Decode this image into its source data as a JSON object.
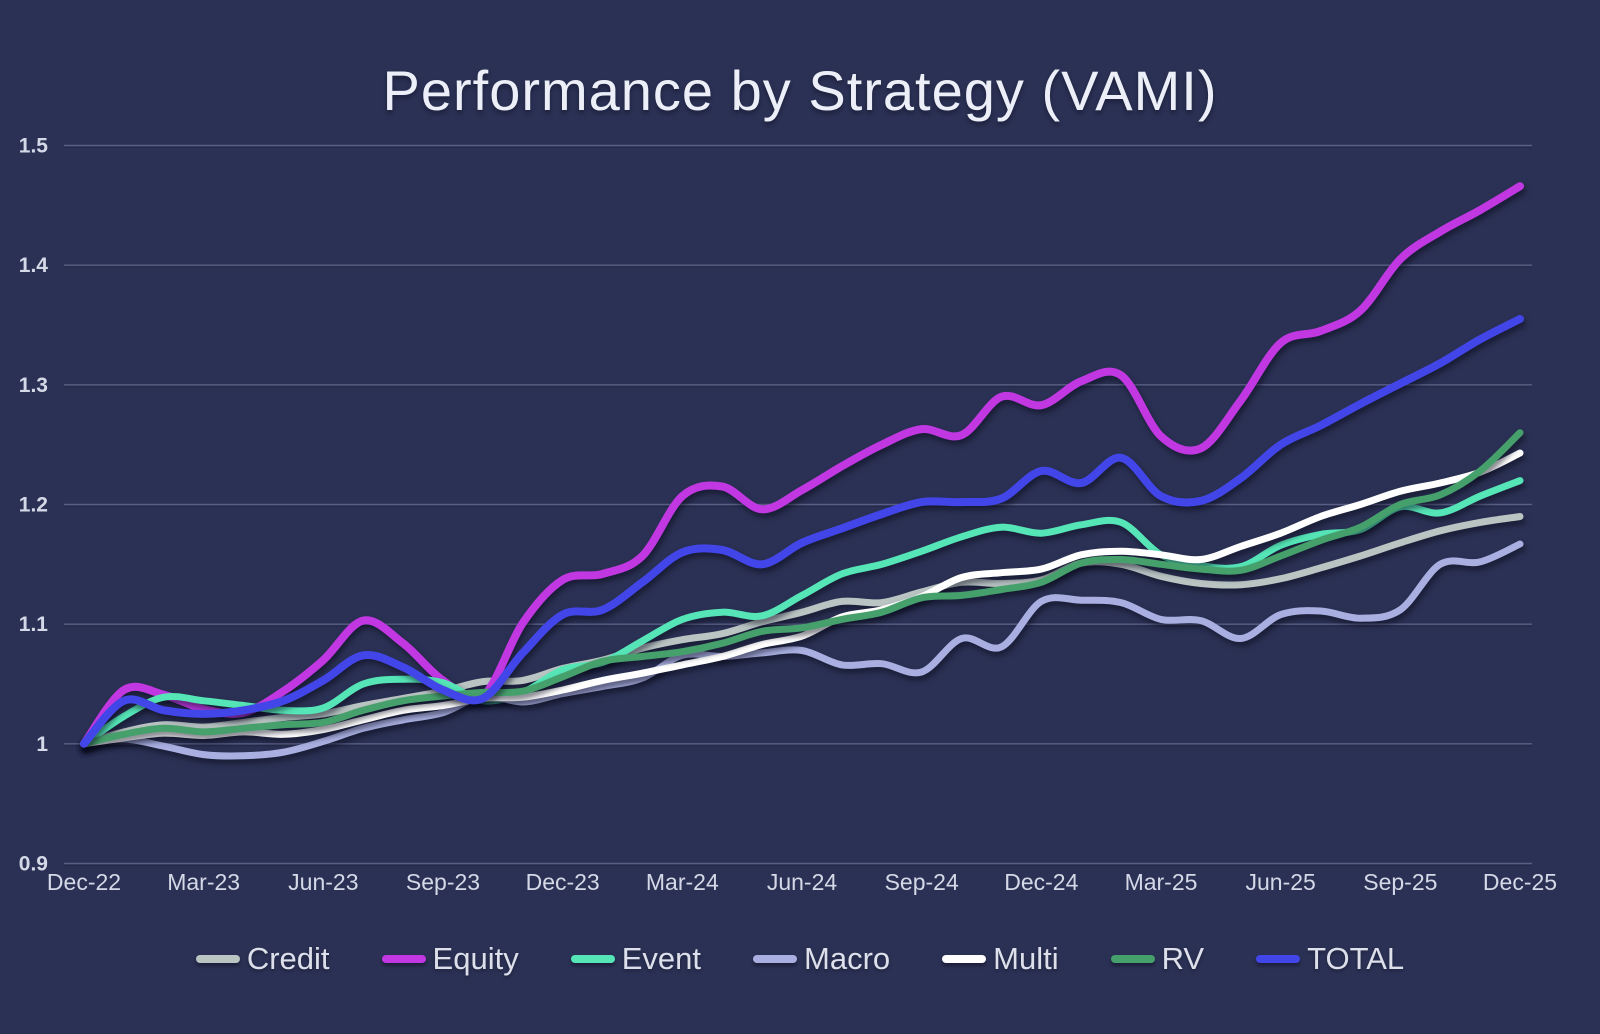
{
  "title": "Performance by Strategy (VAMI)",
  "colors": {
    "background": "#2b3154",
    "gridline": "#696e95",
    "axis_text": "#d5d9e7",
    "title_text": "#eceff7",
    "legend_text": "#dde0ea"
  },
  "chart_data": {
    "type": "line",
    "title": "Performance by Strategy (VAMI)",
    "xlabel": "",
    "ylabel": "",
    "ylim": [
      0.9,
      1.5
    ],
    "grid": "horizontal-only",
    "legend_position": "bottom-center",
    "points_per_series": 37,
    "x_unit": "months (Dec-22 to Dec-25, monthly)",
    "y_ticks": [
      {
        "value": 0.9,
        "label": "0.9"
      },
      {
        "value": 1.0,
        "label": "1"
      },
      {
        "value": 1.1,
        "label": "1.1"
      },
      {
        "value": 1.2,
        "label": "1.2"
      },
      {
        "value": 1.3,
        "label": "1.3"
      },
      {
        "value": 1.4,
        "label": "1.4"
      },
      {
        "value": 1.5,
        "label": "1.5"
      }
    ],
    "x_tick_labels": [
      "Dec-22",
      "Mar-23",
      "Jun-23",
      "Sep-23",
      "Dec-23",
      "Mar-24",
      "Jun-24",
      "Sep-24",
      "Dec-24",
      "Mar-25",
      "Jun-25",
      "Sep-25",
      "Dec-25"
    ],
    "x_tick_every_n_points": 3,
    "series": [
      {
        "name": "Credit",
        "color": "#b9c4c3",
        "stroke_width": 7,
        "values": [
          1.0,
          1.01,
          1.016,
          1.014,
          1.018,
          1.022,
          1.025,
          1.032,
          1.038,
          1.044,
          1.052,
          1.053,
          1.063,
          1.07,
          1.08,
          1.087,
          1.092,
          1.102,
          1.11,
          1.119,
          1.118,
          1.127,
          1.135,
          1.134,
          1.137,
          1.151,
          1.15,
          1.14,
          1.134,
          1.133,
          1.138,
          1.147,
          1.157,
          1.168,
          1.178,
          1.185,
          1.19
        ]
      },
      {
        "name": "Equity",
        "color": "#c138e3",
        "stroke_width": 8,
        "values": [
          1.0,
          1.045,
          1.041,
          1.029,
          1.026,
          1.044,
          1.07,
          1.103,
          1.084,
          1.053,
          1.04,
          1.101,
          1.137,
          1.142,
          1.157,
          1.207,
          1.215,
          1.196,
          1.212,
          1.232,
          1.25,
          1.263,
          1.258,
          1.29,
          1.283,
          1.303,
          1.308,
          1.257,
          1.247,
          1.287,
          1.335,
          1.345,
          1.362,
          1.405,
          1.428,
          1.446,
          1.466
        ]
      },
      {
        "name": "Event",
        "color": "#55e5b6",
        "stroke_width": 7,
        "values": [
          1.0,
          1.023,
          1.039,
          1.036,
          1.032,
          1.028,
          1.03,
          1.05,
          1.054,
          1.051,
          1.036,
          1.043,
          1.062,
          1.068,
          1.086,
          1.104,
          1.11,
          1.107,
          1.124,
          1.142,
          1.15,
          1.161,
          1.173,
          1.181,
          1.176,
          1.183,
          1.185,
          1.158,
          1.149,
          1.148,
          1.166,
          1.175,
          1.179,
          1.198,
          1.193,
          1.207,
          1.22
        ]
      },
      {
        "name": "Macro",
        "color": "#a9afe0",
        "stroke_width": 7,
        "values": [
          1.0,
          1.004,
          0.998,
          0.991,
          0.99,
          0.993,
          1.002,
          1.013,
          1.02,
          1.026,
          1.04,
          1.035,
          1.042,
          1.048,
          1.055,
          1.074,
          1.073,
          1.076,
          1.078,
          1.066,
          1.067,
          1.06,
          1.088,
          1.081,
          1.119,
          1.12,
          1.118,
          1.104,
          1.103,
          1.088,
          1.108,
          1.111,
          1.105,
          1.112,
          1.15,
          1.152,
          1.167
        ]
      },
      {
        "name": "Multi",
        "color": "#ffffff",
        "stroke_width": 7,
        "values": [
          1.0,
          1.005,
          1.009,
          1.007,
          1.01,
          1.008,
          1.012,
          1.02,
          1.028,
          1.032,
          1.038,
          1.039,
          1.045,
          1.053,
          1.059,
          1.066,
          1.073,
          1.083,
          1.09,
          1.106,
          1.112,
          1.123,
          1.139,
          1.143,
          1.146,
          1.158,
          1.161,
          1.158,
          1.154,
          1.165,
          1.176,
          1.19,
          1.2,
          1.211,
          1.218,
          1.227,
          1.243
        ]
      },
      {
        "name": "RV",
        "color": "#46a06b",
        "stroke_width": 7,
        "values": [
          1.0,
          1.008,
          1.013,
          1.01,
          1.013,
          1.016,
          1.018,
          1.028,
          1.036,
          1.04,
          1.043,
          1.044,
          1.056,
          1.069,
          1.073,
          1.077,
          1.084,
          1.094,
          1.097,
          1.104,
          1.11,
          1.122,
          1.124,
          1.129,
          1.135,
          1.151,
          1.154,
          1.15,
          1.146,
          1.145,
          1.157,
          1.17,
          1.181,
          1.2,
          1.208,
          1.228,
          1.26
        ]
      },
      {
        "name": "TOTAL",
        "color": "#4246e8",
        "stroke_width": 8,
        "values": [
          1.0,
          1.036,
          1.028,
          1.025,
          1.028,
          1.036,
          1.053,
          1.074,
          1.064,
          1.045,
          1.038,
          1.076,
          1.108,
          1.112,
          1.135,
          1.16,
          1.162,
          1.15,
          1.168,
          1.18,
          1.192,
          1.202,
          1.202,
          1.205,
          1.228,
          1.218,
          1.239,
          1.207,
          1.203,
          1.222,
          1.25,
          1.266,
          1.284,
          1.301,
          1.318,
          1.338,
          1.355
        ]
      }
    ]
  }
}
